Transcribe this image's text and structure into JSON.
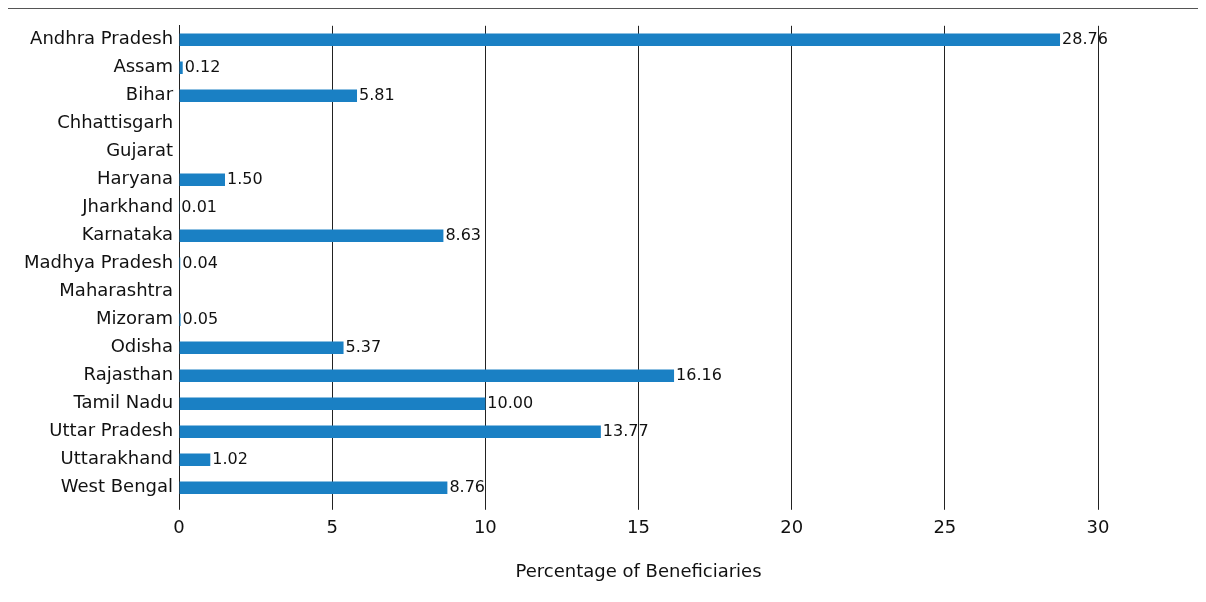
{
  "chart_data": {
    "type": "bar",
    "orientation": "horizontal",
    "xlabel": "Percentage of Beneficiaries",
    "categories": [
      "Andhra Pradesh",
      "Assam",
      "Bihar",
      "Chhattisgarh",
      "Gujarat",
      "Haryana",
      "Jharkhand",
      "Karnataka",
      "Madhya Pradesh",
      "Maharashtra",
      "Mizoram",
      "Odisha",
      "Rajasthan",
      "Tamil Nadu",
      "Uttar Pradesh",
      "Uttarakhand",
      "West Bengal"
    ],
    "values": [
      28.76,
      0.12,
      5.81,
      null,
      null,
      1.5,
      0.01,
      8.63,
      0.04,
      null,
      0.05,
      5.37,
      16.16,
      10,
      13.77,
      1.02,
      8.76
    ],
    "value_labels": [
      "28.76",
      "0.12",
      "5.81",
      null,
      null,
      "1.50",
      "0.01",
      "8.63",
      "0.04",
      null,
      "0.05",
      "5.37",
      "16.16",
      "10.00",
      "13.77",
      "1.02",
      "8.76"
    ],
    "color": "#1a80c4",
    "xlim": [
      0,
      30
    ],
    "xticks": [
      0,
      5,
      10,
      15,
      20,
      25,
      30
    ],
    "grid": "x",
    "legend": false
  }
}
